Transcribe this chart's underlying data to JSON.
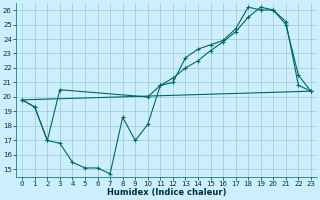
{
  "xlabel": "Humidex (Indice chaleur)",
  "bg_color": "#cceeff",
  "grid_color": "#99cccc",
  "line_color": "#006666",
  "xlim": [
    -0.5,
    23.5
  ],
  "ylim": [
    14.5,
    26.5
  ],
  "xticks": [
    0,
    1,
    2,
    3,
    4,
    5,
    6,
    7,
    8,
    9,
    10,
    11,
    12,
    13,
    14,
    15,
    16,
    17,
    18,
    19,
    20,
    21,
    22,
    23
  ],
  "yticks": [
    15,
    16,
    17,
    18,
    19,
    20,
    21,
    22,
    23,
    24,
    25,
    26
  ],
  "series1_x": [
    0,
    1,
    2,
    3,
    4,
    5,
    6,
    7,
    8,
    9,
    10,
    11,
    12,
    13,
    14,
    15,
    16,
    17,
    18,
    19,
    20,
    21,
    22,
    23
  ],
  "series1_y": [
    19.8,
    19.3,
    17.0,
    16.8,
    15.5,
    15.1,
    15.1,
    14.7,
    18.6,
    17.0,
    18.1,
    20.8,
    21.0,
    22.7,
    23.3,
    23.6,
    23.9,
    24.7,
    26.2,
    26.0,
    26.0,
    25.2,
    20.8,
    20.4
  ],
  "series2_x": [
    0,
    1,
    2,
    3,
    10,
    11,
    12,
    13,
    14,
    15,
    16,
    17,
    18,
    19,
    20,
    21,
    22,
    23
  ],
  "series2_y": [
    19.8,
    19.3,
    17.0,
    20.5,
    20.0,
    20.8,
    21.3,
    22.0,
    22.5,
    23.2,
    23.8,
    24.5,
    25.5,
    26.2,
    26.0,
    25.0,
    21.5,
    20.4
  ],
  "series3_x": [
    0,
    23
  ],
  "series3_y": [
    19.8,
    20.4
  ]
}
